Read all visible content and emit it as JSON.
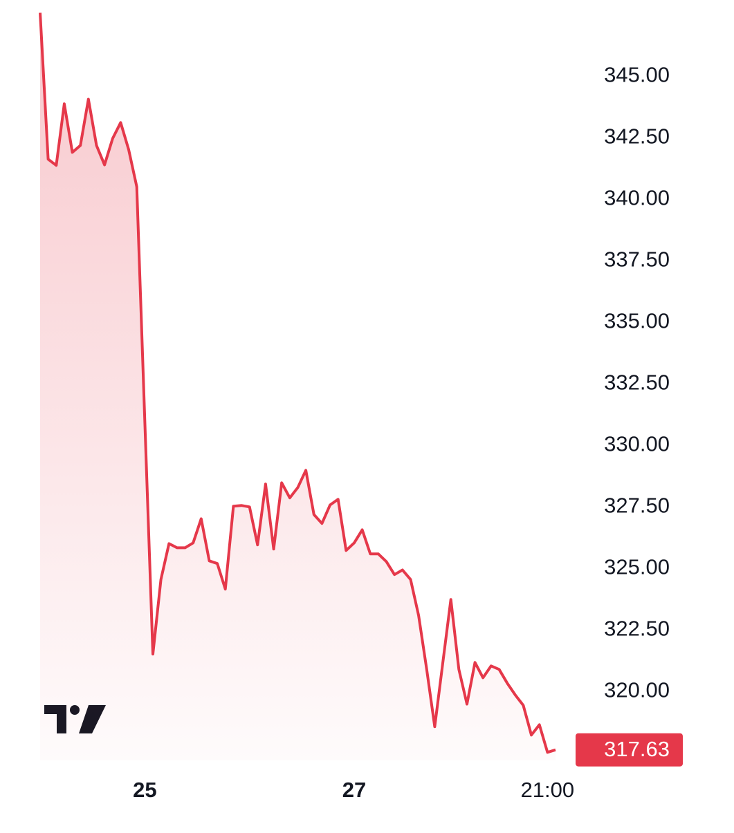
{
  "chart_data": {
    "type": "line",
    "categories": [
      null,
      null,
      null,
      null,
      null,
      null,
      null,
      null,
      null,
      null,
      null,
      null,
      null,
      "25",
      null,
      null,
      null,
      null,
      null,
      null,
      null,
      null,
      null,
      null,
      null,
      null,
      null,
      null,
      null,
      null,
      null,
      null,
      null,
      null,
      null,
      null,
      null,
      null,
      null,
      "27",
      null,
      null,
      null,
      null,
      null,
      null,
      null,
      null,
      null,
      null,
      null,
      null,
      null,
      null,
      null,
      null,
      null,
      null,
      null,
      null,
      null,
      null,
      null,
      "21:00",
      null
    ],
    "series": [
      {
        "color": "#e5384a",
        "values": [
          347.58,
          341.63,
          341.38,
          343.88,
          341.91,
          342.19,
          344.07,
          342.19,
          341.4,
          342.47,
          343.12,
          342.02,
          340.51,
          331.01,
          321.52,
          324.55,
          326.01,
          325.84,
          325.84,
          326.04,
          327.02,
          325.31,
          325.2,
          324.16,
          327.53,
          327.56,
          327.5,
          325.96,
          328.43,
          325.79,
          328.48,
          327.87,
          328.29,
          328.99,
          327.19,
          326.83,
          327.58,
          327.81,
          325.73,
          326.04,
          326.57,
          325.59,
          325.59,
          325.28,
          324.75,
          324.94,
          324.55,
          323.09,
          320.9,
          318.57,
          321.15,
          323.74,
          320.9,
          319.49,
          321.18,
          320.56,
          321.04,
          320.9,
          320.34,
          319.86,
          319.44,
          318.23,
          318.65,
          317.53,
          317.63
        ]
      }
    ],
    "ylim": [
      317.2,
      348.1
    ],
    "yticks": [
      {
        "value": 320,
        "label": "320.00"
      },
      {
        "value": 322.5,
        "label": "322.50"
      },
      {
        "value": 325,
        "label": "325.00"
      },
      {
        "value": 327.5,
        "label": "327.50"
      },
      {
        "value": 330,
        "label": "330.00"
      },
      {
        "value": 332.5,
        "label": "332.50"
      },
      {
        "value": 335,
        "label": "335.00"
      },
      {
        "value": 337.5,
        "label": "337.50"
      },
      {
        "value": 340,
        "label": "340.00"
      },
      {
        "value": 342.5,
        "label": "342.50"
      },
      {
        "value": 345,
        "label": "345.00"
      }
    ],
    "grid": false
  }
}
